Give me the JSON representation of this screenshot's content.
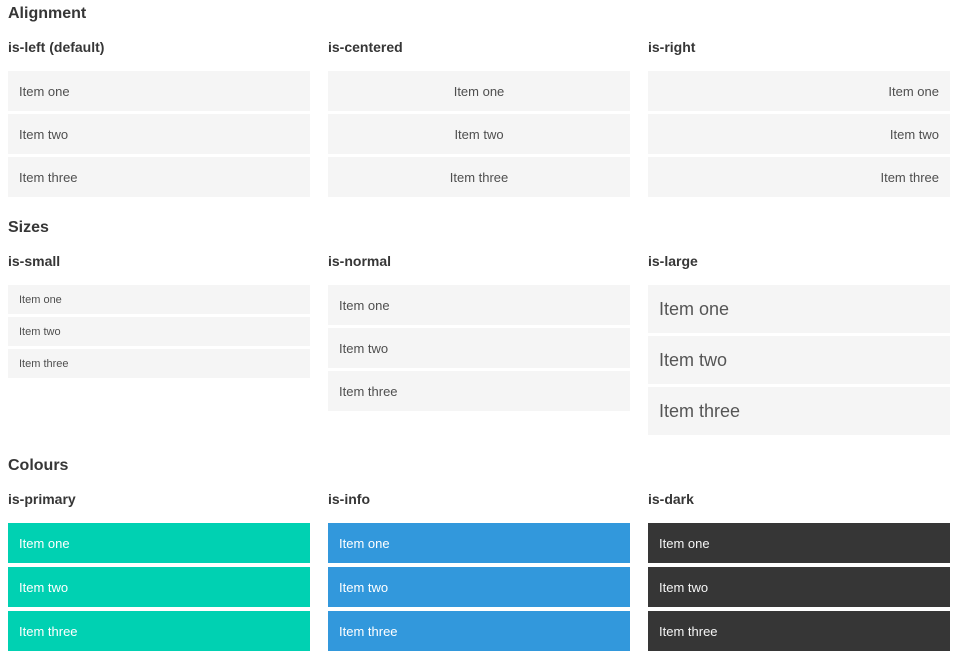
{
  "sections": [
    {
      "title": "Alignment",
      "columns": [
        {
          "subtitle": "is-left (default)",
          "items": [
            "Item one",
            "Item two",
            "Item three"
          ]
        },
        {
          "subtitle": "is-centered",
          "items": [
            "Item one",
            "Item two",
            "Item three"
          ]
        },
        {
          "subtitle": "is-right",
          "items": [
            "Item one",
            "Item two",
            "Item three"
          ]
        }
      ]
    },
    {
      "title": "Sizes",
      "columns": [
        {
          "subtitle": "is-small",
          "items": [
            "Item one",
            "Item two",
            "Item three"
          ]
        },
        {
          "subtitle": "is-normal",
          "items": [
            "Item one",
            "Item two",
            "Item three"
          ]
        },
        {
          "subtitle": "is-large",
          "items": [
            "Item one",
            "Item two",
            "Item three"
          ]
        }
      ]
    },
    {
      "title": "Colours",
      "columns": [
        {
          "subtitle": "is-primary",
          "items": [
            "Item one",
            "Item two",
            "Item three"
          ]
        },
        {
          "subtitle": "is-info",
          "items": [
            "Item one",
            "Item two",
            "Item three"
          ]
        },
        {
          "subtitle": "is-dark",
          "items": [
            "Item one",
            "Item two",
            "Item three"
          ]
        }
      ]
    }
  ],
  "colors": {
    "primary": "#00d1b2",
    "info": "#3298dc",
    "dark": "#363636",
    "item_background": "#f5f5f5",
    "item_text": "#4f4f4f",
    "heading_text": "#363636",
    "colored_item_text": "#ffffff"
  }
}
